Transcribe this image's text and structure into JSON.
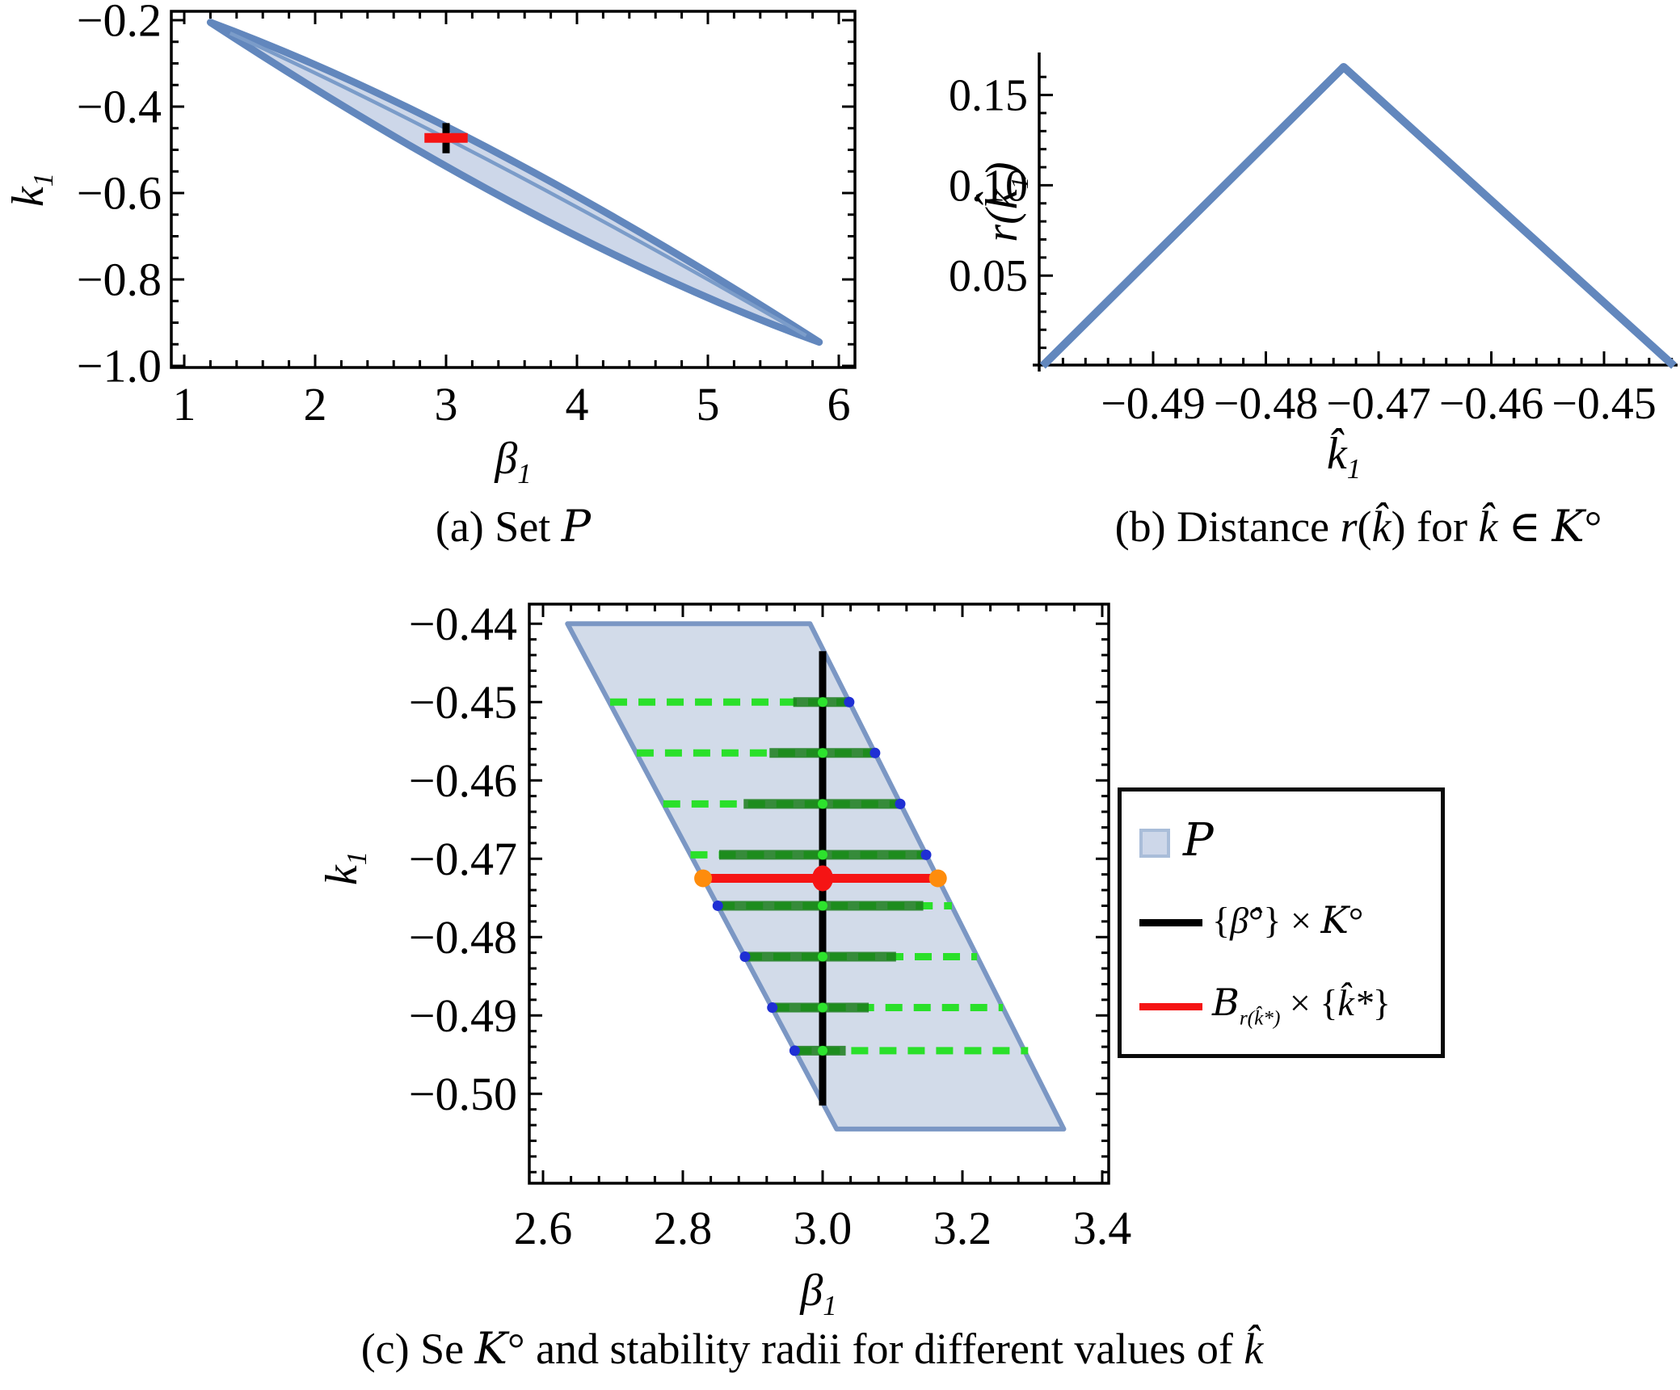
{
  "figure": {
    "captions": {
      "a": [
        {
          "t": "(a) Set "
        },
        {
          "t": "P",
          "c": "scr"
        }
      ],
      "b": [
        {
          "t": "(b) Distance "
        },
        {
          "t": "r",
          "c": "it"
        },
        {
          "t": "("
        },
        {
          "t": "k̂",
          "c": "it"
        },
        {
          "t": ") for "
        },
        {
          "t": "k̂",
          "c": "it"
        },
        {
          "t": " ∈ "
        },
        {
          "t": "K",
          "c": "scr"
        },
        {
          "t": "°"
        }
      ],
      "c": [
        {
          "t": "(c) Se "
        },
        {
          "t": "K",
          "c": "scr"
        },
        {
          "t": "° and stability radii for different values of "
        },
        {
          "t": "k̂",
          "c": "it"
        }
      ]
    }
  },
  "plot_a": {
    "y_label": {
      "base": "k",
      "sub": "1"
    },
    "x_label": {
      "base": "β",
      "sub": "1"
    },
    "y_tick_labels": [
      "−0.2",
      "−0.4",
      "−0.6",
      "−0.8",
      "−1.0"
    ],
    "x_tick_labels": [
      "1",
      "2",
      "3",
      "4",
      "5",
      "6"
    ]
  },
  "plot_b": {
    "y_label_parts": [
      {
        "t": "r",
        "c": "it"
      },
      {
        "t": "("
      },
      {
        "t": "k̂",
        "c": "it"
      },
      {
        "t": "1",
        "c": "sb"
      },
      {
        "t": ")"
      }
    ],
    "x_label": {
      "base": "k̂",
      "sub": "1"
    },
    "y_tick_labels": [
      "0.05",
      "0.10",
      "0.15"
    ],
    "x_tick_labels": [
      "−0.49",
      "−0.48",
      "−0.47",
      "−0.46",
      "−0.45"
    ]
  },
  "plot_c": {
    "y_label": {
      "base": "k",
      "sub": "1"
    },
    "x_label": {
      "base": "β",
      "sub": "1"
    },
    "y_tick_labels": [
      "−0.44",
      "−0.45",
      "−0.46",
      "−0.47",
      "−0.48",
      "−0.49",
      "−0.50"
    ],
    "x_tick_labels": [
      "2.6",
      "2.8",
      "3.0",
      "3.2",
      "3.4"
    ]
  },
  "legend": {
    "items": [
      {
        "swatch": "area-swatch",
        "label_parts": [
          {
            "t": "P",
            "c": "scr"
          }
        ]
      },
      {
        "swatch": "black-line",
        "label_parts": [
          {
            "t": "{"
          },
          {
            "t": "β̂",
            "c": "it"
          },
          {
            "t": "°} × "
          },
          {
            "t": "K",
            "c": "scr"
          },
          {
            "t": "°"
          }
        ]
      },
      {
        "swatch": "red-line",
        "label_parts": [
          {
            "t": "B",
            "c": "scr"
          },
          {
            "t": "r(k̂*)",
            "c": "sb"
          },
          {
            "t": " × {"
          },
          {
            "t": "k̂*",
            "c": "it"
          },
          {
            "t": "}"
          }
        ]
      }
    ]
  },
  "colors": {
    "region_fill_a": "#cdd7e9",
    "region_stroke_a": "#6287bd",
    "inner_line_a": "#7b9cc9",
    "tent_line": "#6287bd",
    "region_fill_c": "#d2dbe9",
    "region_stroke_c": "#7b97c4",
    "solid_green": "#1b7d1b",
    "dash_green": "#2ae02a",
    "center_dot_green": "#2de32d",
    "blue_marker": "#1f2fd4",
    "red": "#f51414",
    "orange": "#fe8c0c",
    "axis_black": "#000000",
    "legend_swatch_fill": "#cdd7e9",
    "legend_swatch_border": "#a9bdd9"
  },
  "chart_data": [
    {
      "id": "a",
      "type": "area",
      "title": "Set P",
      "xlabel": "beta_1",
      "ylabel": "k_1",
      "xlim": [
        0.88,
        6.12
      ],
      "ylim": [
        -1.01,
        -0.19
      ],
      "x_major_ticks": [
        1,
        2,
        3,
        4,
        5,
        6
      ],
      "y_major_ticks": [
        -0.2,
        -0.4,
        -0.6,
        -0.8,
        -1.0
      ],
      "x_minor_step": 0.2,
      "y_minor_step": 0.05,
      "lens": {
        "upper_quad": [
          [
            1.2,
            -0.205
          ],
          [
            3.2,
            -0.43
          ],
          [
            5.85,
            -0.945
          ]
        ],
        "lower_quad": [
          [
            1.2,
            -0.205
          ],
          [
            3.8,
            -0.72
          ],
          [
            5.85,
            -0.945
          ]
        ],
        "inner_quad": [
          [
            1.35,
            -0.23
          ],
          [
            3.3,
            -0.5
          ],
          [
            5.75,
            -0.93
          ]
        ]
      },
      "black_segment": {
        "beta": 3.0,
        "k": [
          -0.438,
          -0.508
        ]
      },
      "red_segment": {
        "k": -0.4725,
        "beta": [
          2.835,
          3.165
        ]
      }
    },
    {
      "id": "b",
      "type": "line",
      "title": "Distance r(k) for k in K°",
      "xlabel": "khat_1",
      "ylabel": "r(khat_1)",
      "xlim": [
        -0.5,
        -0.4434
      ],
      "ylim": [
        0,
        0.175
      ],
      "x_major_ticks": [
        -0.49,
        -0.48,
        -0.47,
        -0.46,
        -0.45
      ],
      "y_major_ticks": [
        0.05,
        0.1,
        0.15
      ],
      "x_minor_step": 0.002,
      "y_minor_step": 0.01,
      "series": [
        {
          "name": "r(khat)",
          "x": [
            -0.4998,
            -0.4731,
            -0.4438
          ],
          "y": [
            0,
            0.1655,
            0
          ]
        }
      ],
      "peak": {
        "khat": -0.4731,
        "r": 0.1655
      }
    },
    {
      "id": "c",
      "type": "line",
      "title": "Set K° and stability radii",
      "xlabel": "beta_1",
      "ylabel": "k_1",
      "xlim": [
        2.58,
        3.409
      ],
      "ylim": [
        -0.5114,
        -0.4375
      ],
      "x_major_ticks": [
        2.6,
        2.8,
        3.0,
        3.2,
        3.4
      ],
      "y_major_ticks": [
        -0.44,
        -0.45,
        -0.46,
        -0.47,
        -0.48,
        -0.49,
        -0.5
      ],
      "x_minor_step": 0.04,
      "y_minor_step": 0.002,
      "parallelogram": [
        [
          2.635,
          -0.44
        ],
        [
          2.982,
          -0.44
        ],
        [
          3.345,
          -0.5045
        ],
        [
          3.02,
          -0.5045
        ]
      ],
      "black_segment": {
        "beta": 3.0,
        "k": [
          -0.4435,
          -0.5015
        ]
      },
      "red_segment": {
        "k": -0.4725,
        "beta": [
          2.829,
          3.165
        ],
        "center_beta": 3.0
      },
      "center_beta": 3.0,
      "stability_lines": [
        {
          "k": -0.45,
          "p": [
            2.696,
            3.038
          ],
          "ball": [
            2.958,
            3.038
          ],
          "touch": "right"
        },
        {
          "k": -0.4565,
          "p": [
            2.734,
            3.075
          ],
          "ball": [
            2.924,
            3.075
          ],
          "touch": "right"
        },
        {
          "k": -0.463,
          "p": [
            2.772,
            3.111
          ],
          "ball": [
            2.887,
            3.111
          ],
          "touch": "right"
        },
        {
          "k": -0.4695,
          "p": [
            2.811,
            3.148
          ],
          "ball": [
            2.852,
            3.148
          ],
          "touch": "right"
        },
        {
          "k": -0.476,
          "p": [
            2.85,
            3.185
          ],
          "ball": [
            2.85,
            3.144
          ],
          "touch": "left"
        },
        {
          "k": -0.4825,
          "p": [
            2.889,
            3.221
          ],
          "ball": [
            2.889,
            3.105
          ],
          "touch": "left"
        },
        {
          "k": -0.489,
          "p": [
            2.928,
            3.258
          ],
          "ball": [
            2.928,
            3.066
          ],
          "touch": "left"
        },
        {
          "k": -0.4945,
          "p": [
            2.96,
            3.294
          ],
          "ball": [
            2.96,
            3.033
          ],
          "touch": "left"
        }
      ]
    }
  ]
}
